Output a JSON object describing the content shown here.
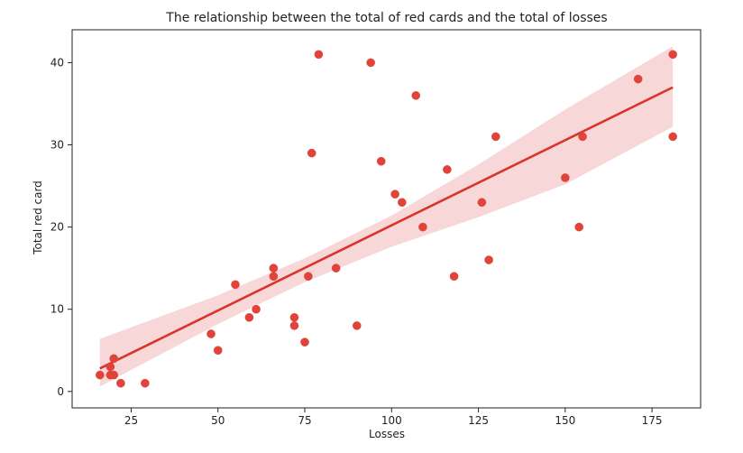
{
  "chart_data": {
    "type": "scatter",
    "title": "The relationship between the total of red cards and the total of losses",
    "xlabel": "Losses",
    "ylabel": "Total red card",
    "xlim": [
      8,
      189
    ],
    "ylim": [
      -2,
      44
    ],
    "xticks": [
      25,
      50,
      75,
      100,
      125,
      150,
      175
    ],
    "yticks": [
      0,
      10,
      20,
      30,
      40
    ],
    "grid": false,
    "colors": {
      "points": "#e0433a",
      "line": "#d9342b",
      "band": "#f6d0d0"
    },
    "points": [
      {
        "x": 16,
        "y": 2
      },
      {
        "x": 19,
        "y": 2
      },
      {
        "x": 19,
        "y": 3
      },
      {
        "x": 20,
        "y": 2
      },
      {
        "x": 20,
        "y": 4
      },
      {
        "x": 22,
        "y": 1
      },
      {
        "x": 29,
        "y": 1
      },
      {
        "x": 48,
        "y": 7
      },
      {
        "x": 50,
        "y": 5
      },
      {
        "x": 55,
        "y": 13
      },
      {
        "x": 59,
        "y": 9
      },
      {
        "x": 61,
        "y": 10
      },
      {
        "x": 66,
        "y": 15
      },
      {
        "x": 66,
        "y": 14
      },
      {
        "x": 72,
        "y": 9
      },
      {
        "x": 72,
        "y": 8
      },
      {
        "x": 75,
        "y": 6
      },
      {
        "x": 76,
        "y": 14
      },
      {
        "x": 77,
        "y": 29
      },
      {
        "x": 79,
        "y": 41
      },
      {
        "x": 84,
        "y": 15
      },
      {
        "x": 90,
        "y": 8
      },
      {
        "x": 94,
        "y": 40
      },
      {
        "x": 97,
        "y": 28
      },
      {
        "x": 101,
        "y": 24
      },
      {
        "x": 103,
        "y": 23
      },
      {
        "x": 107,
        "y": 36
      },
      {
        "x": 109,
        "y": 20
      },
      {
        "x": 116,
        "y": 27
      },
      {
        "x": 118,
        "y": 14
      },
      {
        "x": 126,
        "y": 23
      },
      {
        "x": 128,
        "y": 16
      },
      {
        "x": 130,
        "y": 31
      },
      {
        "x": 150,
        "y": 26
      },
      {
        "x": 154,
        "y": 20
      },
      {
        "x": 155,
        "y": 31
      },
      {
        "x": 171,
        "y": 38
      },
      {
        "x": 181,
        "y": 41
      },
      {
        "x": 181,
        "y": 31
      }
    ],
    "regression": {
      "line": [
        {
          "x": 16,
          "y": 2.8
        },
        {
          "x": 181,
          "y": 37.0
        }
      ],
      "ci_upper": [
        {
          "x": 16,
          "y": 6.4
        },
        {
          "x": 50,
          "y": 11.7
        },
        {
          "x": 75,
          "y": 16.2
        },
        {
          "x": 100,
          "y": 21.4
        },
        {
          "x": 125,
          "y": 27.6
        },
        {
          "x": 150,
          "y": 34.3
        },
        {
          "x": 181,
          "y": 42.0
        }
      ],
      "ci_lower": [
        {
          "x": 16,
          "y": 0.6
        },
        {
          "x": 50,
          "y": 8.2
        },
        {
          "x": 75,
          "y": 13.3
        },
        {
          "x": 100,
          "y": 17.6
        },
        {
          "x": 125,
          "y": 21.2
        },
        {
          "x": 150,
          "y": 25.2
        },
        {
          "x": 181,
          "y": 32.2
        }
      ]
    }
  }
}
